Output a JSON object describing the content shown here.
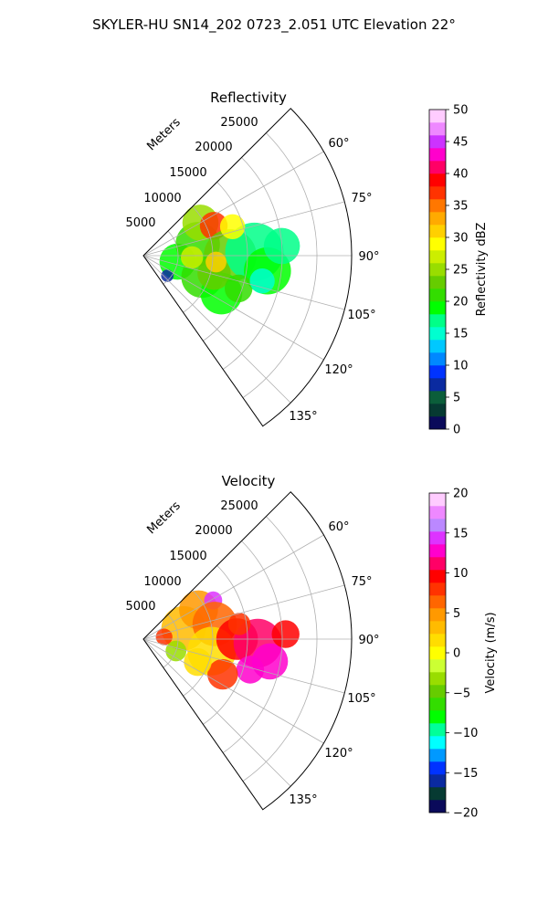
{
  "figure": {
    "title": "SKYLER-HU  SN14_202  0723_2.051 UTC Elevation 22°"
  },
  "colors": {
    "reflectivity": [
      "#0a0a5a",
      "#063a32",
      "#0b5e3a",
      "#0a2aa0",
      "#0033ff",
      "#0088ff",
      "#00c8ff",
      "#00ffd0",
      "#00ff88",
      "#00ff00",
      "#33dd00",
      "#66cc00",
      "#99dd00",
      "#ccee00",
      "#ffff00",
      "#ffd000",
      "#ffaa00",
      "#ff7700",
      "#ff3300",
      "#ff0000",
      "#ff0066",
      "#ff00cc",
      "#cc33ff",
      "#ee88ff",
      "#ffccff"
    ],
    "velocity": [
      "#0a0a5a",
      "#063a32",
      "#0a2aa0",
      "#0033ff",
      "#0099ff",
      "#00ffff",
      "#00ff99",
      "#00ff00",
      "#33dd00",
      "#66cc00",
      "#99dd00",
      "#ccff33",
      "#ffff00",
      "#ffdd00",
      "#ffbb00",
      "#ff9900",
      "#ff6600",
      "#ff3300",
      "#ff0000",
      "#ff0066",
      "#ff00cc",
      "#dd33ff",
      "#bb88ff",
      "#ee88ff",
      "#ffccff"
    ]
  },
  "chart_data": [
    {
      "type": "heatmap",
      "projection": "polar-sector",
      "title": "Reflectivity",
      "radial_label": "Meters",
      "radial_ticks": [
        5000,
        10000,
        15000,
        20000,
        25000
      ],
      "radial_range": [
        0,
        30000
      ],
      "theta_range_deg": [
        45,
        145
      ],
      "theta_ticks_deg": [
        60,
        75,
        90,
        105,
        120,
        135
      ],
      "theta_tick_labels": [
        "60°",
        "75°",
        "90°",
        "105°",
        "120°",
        "135°"
      ],
      "grid": true,
      "colorbar": {
        "label": "Reflectivity dBZ",
        "range": [
          0,
          50
        ],
        "ticks": [
          0,
          5,
          10,
          15,
          20,
          25,
          30,
          35,
          40,
          45,
          50
        ]
      }
    },
    {
      "type": "heatmap",
      "projection": "polar-sector",
      "title": "Velocity",
      "radial_label": "Meters",
      "radial_ticks": [
        5000,
        10000,
        15000,
        20000,
        25000
      ],
      "radial_range": [
        0,
        30000
      ],
      "theta_range_deg": [
        45,
        145
      ],
      "theta_ticks_deg": [
        60,
        75,
        90,
        105,
        120,
        135
      ],
      "theta_tick_labels": [
        "60°",
        "75°",
        "90°",
        "105°",
        "120°",
        "135°"
      ],
      "grid": true,
      "colorbar": {
        "label": "Velocity (m/s)",
        "range": [
          -20,
          20
        ],
        "ticks": [
          -20,
          -15,
          -10,
          -5,
          0,
          5,
          10,
          15,
          20
        ]
      }
    }
  ]
}
